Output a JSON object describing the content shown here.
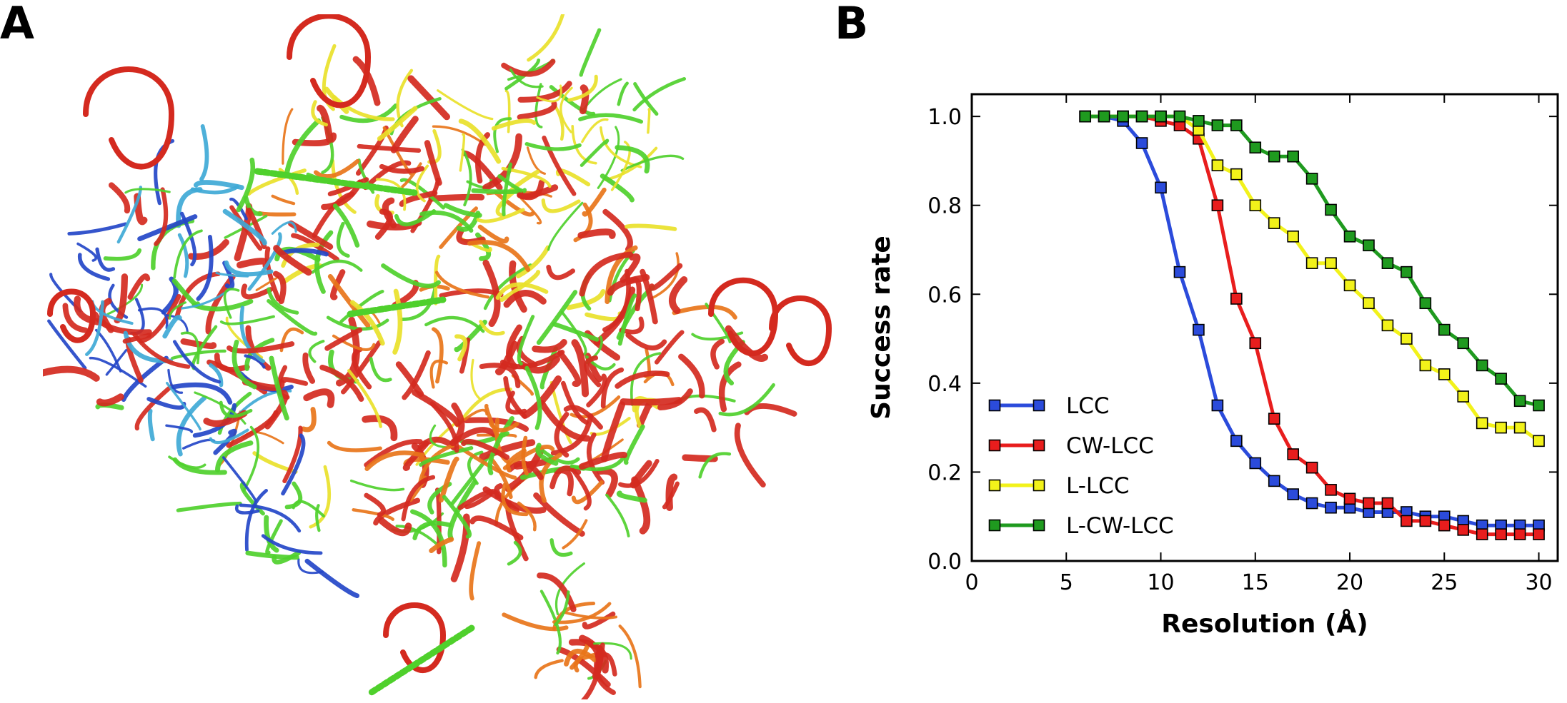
{
  "panels": {
    "a_label": "A",
    "b_label": "B"
  },
  "structure": {
    "icon": "ribosome-structure-icon"
  },
  "colors": {
    "rna": "#d42a1f",
    "protein_green": "#4fd02c",
    "protein_blue": "#2446c8",
    "protein_cyan": "#3fa9d6",
    "protein_orange": "#e8751a",
    "protein_yellow": "#e9e12a"
  },
  "chart_data": {
    "type": "line",
    "title": "",
    "xlabel": "Resolution (Å)",
    "ylabel": "Success rate",
    "xlim": [
      0,
      31
    ],
    "ylim": [
      0,
      1.05
    ],
    "xticks": [
      0,
      5,
      10,
      15,
      20,
      25,
      30
    ],
    "xtick_labels": [
      "0",
      "5",
      "10",
      "15",
      "20",
      "25",
      "30"
    ],
    "yticks": [
      0.0,
      0.2,
      0.4,
      0.6,
      0.8,
      1.0
    ],
    "ytick_labels": [
      "0.0",
      "0.2",
      "0.4",
      "0.6",
      "0.8",
      "1.0"
    ],
    "legend_position": "lower-left",
    "grid": false,
    "marker": "square",
    "series": [
      {
        "name": "LCC",
        "color": "#2b4bdb",
        "x": [
          6,
          7,
          8,
          9,
          10,
          11,
          12,
          13,
          14,
          15,
          16,
          17,
          18,
          19,
          20,
          21,
          22,
          23,
          24,
          25,
          26,
          27,
          28,
          29,
          30
        ],
        "y": [
          1.0,
          1.0,
          0.99,
          0.94,
          0.84,
          0.65,
          0.52,
          0.35,
          0.27,
          0.22,
          0.18,
          0.15,
          0.13,
          0.12,
          0.12,
          0.11,
          0.11,
          0.11,
          0.1,
          0.1,
          0.09,
          0.08,
          0.08,
          0.08,
          0.08
        ]
      },
      {
        "name": "CW-LCC",
        "color": "#e81d1d",
        "x": [
          6,
          7,
          8,
          9,
          10,
          11,
          12,
          13,
          14,
          15,
          16,
          17,
          18,
          19,
          20,
          21,
          22,
          23,
          24,
          25,
          26,
          27,
          28,
          29,
          30
        ],
        "y": [
          1.0,
          1.0,
          1.0,
          1.0,
          0.99,
          0.98,
          0.95,
          0.8,
          0.59,
          0.49,
          0.32,
          0.24,
          0.21,
          0.16,
          0.14,
          0.13,
          0.13,
          0.09,
          0.09,
          0.08,
          0.07,
          0.06,
          0.06,
          0.06,
          0.06
        ]
      },
      {
        "name": "L-LCC",
        "color": "#f2f21a",
        "x": [
          6,
          7,
          8,
          9,
          10,
          11,
          12,
          13,
          14,
          15,
          16,
          17,
          18,
          19,
          20,
          21,
          22,
          23,
          24,
          25,
          26,
          27,
          28,
          29,
          30
        ],
        "y": [
          1.0,
          1.0,
          1.0,
          1.0,
          1.0,
          1.0,
          0.97,
          0.89,
          0.87,
          0.8,
          0.76,
          0.73,
          0.67,
          0.67,
          0.62,
          0.58,
          0.53,
          0.5,
          0.44,
          0.42,
          0.37,
          0.31,
          0.3,
          0.3,
          0.27
        ]
      },
      {
        "name": "L-CW-LCC",
        "color": "#1f9a1f",
        "x": [
          6,
          7,
          8,
          9,
          10,
          11,
          12,
          13,
          14,
          15,
          16,
          17,
          18,
          19,
          20,
          21,
          22,
          23,
          24,
          25,
          26,
          27,
          28,
          29,
          30
        ],
        "y": [
          1.0,
          1.0,
          1.0,
          1.0,
          1.0,
          1.0,
          0.99,
          0.98,
          0.98,
          0.93,
          0.91,
          0.91,
          0.86,
          0.79,
          0.73,
          0.71,
          0.67,
          0.65,
          0.58,
          0.52,
          0.49,
          0.44,
          0.41,
          0.36,
          0.35
        ]
      }
    ]
  }
}
